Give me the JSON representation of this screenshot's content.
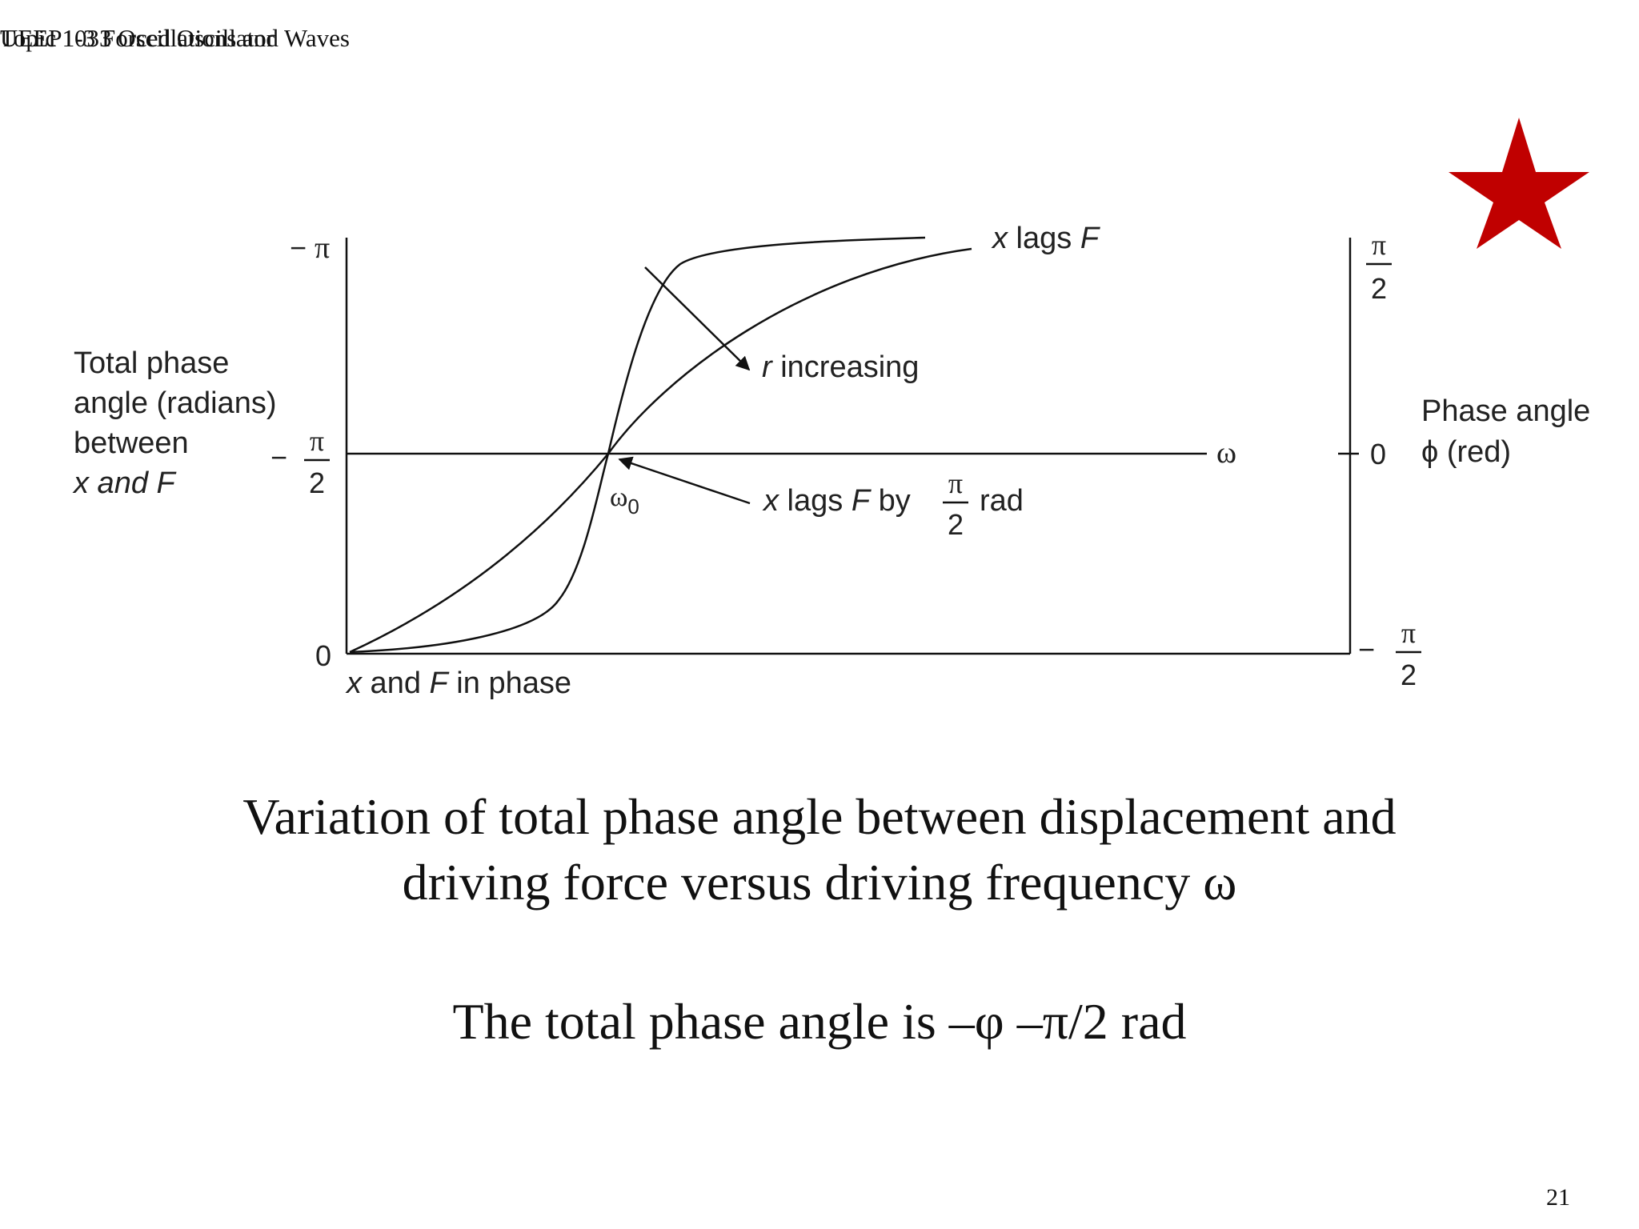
{
  "header": {
    "course": "UEEP1033 Oscillations and Waves",
    "topic": "Topic 1-3 Forced Oscillator"
  },
  "figure": {
    "left_axis_title_lines": [
      "Total phase",
      "angle (radians)",
      "between",
      "x and F"
    ],
    "left_ticks": {
      "top_sign": "−",
      "top_pi": "π",
      "mid_sign": "−",
      "mid_num": "π",
      "mid_den": "2",
      "bottom": "0"
    },
    "right_ticks": {
      "top_num": "π",
      "top_den": "2",
      "mid": "0",
      "bottom_sign": "−",
      "bottom_num": "π",
      "bottom_den": "2"
    },
    "right_axis_title_lines": [
      "Phase angle",
      "ϕ (red)"
    ],
    "x_axis_symbol": "ω",
    "resonance_label": "ω",
    "resonance_sub": "0",
    "annotation_xlagsF": {
      "x": "x",
      "rest": " lags ",
      "F": "F"
    },
    "annotation_r": {
      "r": "r",
      "rest": " increasing"
    },
    "annotation_by": {
      "x": "x",
      "mid": " lags ",
      "F": "F",
      "by": " by",
      "num": "π",
      "den": "2",
      "unit": "rad"
    },
    "annotation_inphase": {
      "x": "x",
      "mid": " and ",
      "F": "F",
      "rest": " in phase"
    }
  },
  "caption_line1": "Variation of total phase angle between displacement and",
  "caption_line2": "driving force versus driving frequency ω",
  "total_phase_text": "The total phase angle is  –φ –π/2 rad",
  "page_number": "21",
  "colors": {
    "star": "#c00000",
    "ink": "#111111"
  }
}
